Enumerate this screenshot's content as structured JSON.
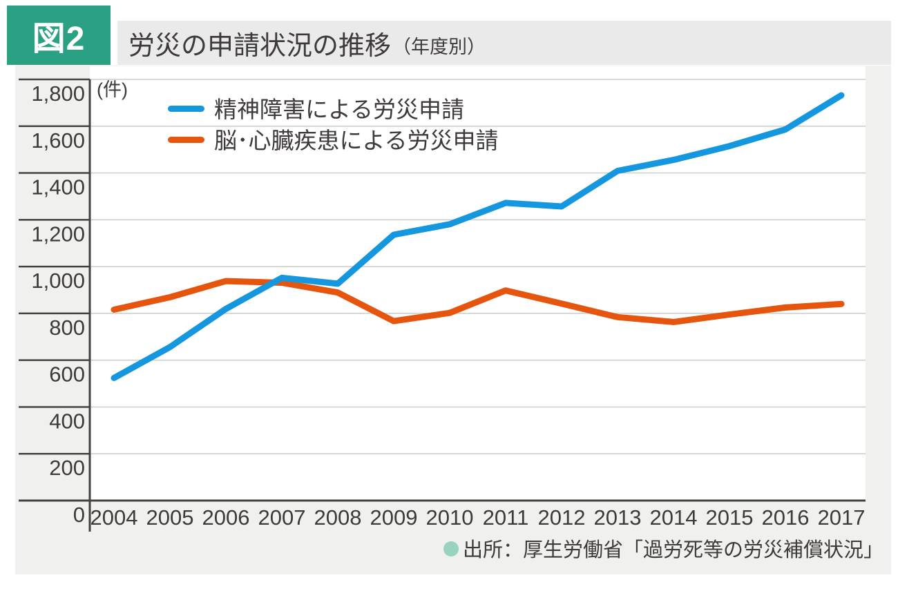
{
  "header": {
    "figure_label": "図2",
    "title": "労災の申請状況の推移",
    "title_note": "（年度別）"
  },
  "colors": {
    "badge": "#2BA184",
    "title_bar_bg": "#EAEAEA",
    "chart_bg": "#F0F0EE",
    "plot_bg": "#FFFFFF",
    "grid": "#CBCBCB",
    "axis": "#454140",
    "text": "#3E3A39",
    "mental_line": "#1497DE",
    "brain_heart_line": "#E5550E",
    "source_bullet": "#97D3BE"
  },
  "source_note": {
    "text": "出所：厚生労働省「過労死等の労災補償状況」"
  },
  "chart_data": {
    "type": "line",
    "title": "労災の申請状況の推移（年度別）",
    "unit_label": "(件)",
    "xlabel": "",
    "ylabel": "件",
    "ylim": [
      0,
      1800
    ],
    "ytick_step": 200,
    "grid": true,
    "legend_position": "top-left-inside",
    "categories": [
      "2004",
      "2005",
      "2006",
      "2007",
      "2008",
      "2009",
      "2010",
      "2011",
      "2012",
      "2013",
      "2014",
      "2015",
      "2016",
      "2017"
    ],
    "series": [
      {
        "name": "精神障害による労災申請",
        "color": "#1497DE",
        "values": [
          524,
          656,
          819,
          952,
          927,
          1136,
          1181,
          1272,
          1257,
          1409,
          1456,
          1515,
          1586,
          1732
        ]
      },
      {
        "name": "脳･心臓疾患による労災申請",
        "color": "#E5550E",
        "values": [
          816,
          869,
          938,
          931,
          889,
          767,
          802,
          898,
          842,
          784,
          763,
          795,
          825,
          840
        ]
      }
    ]
  }
}
